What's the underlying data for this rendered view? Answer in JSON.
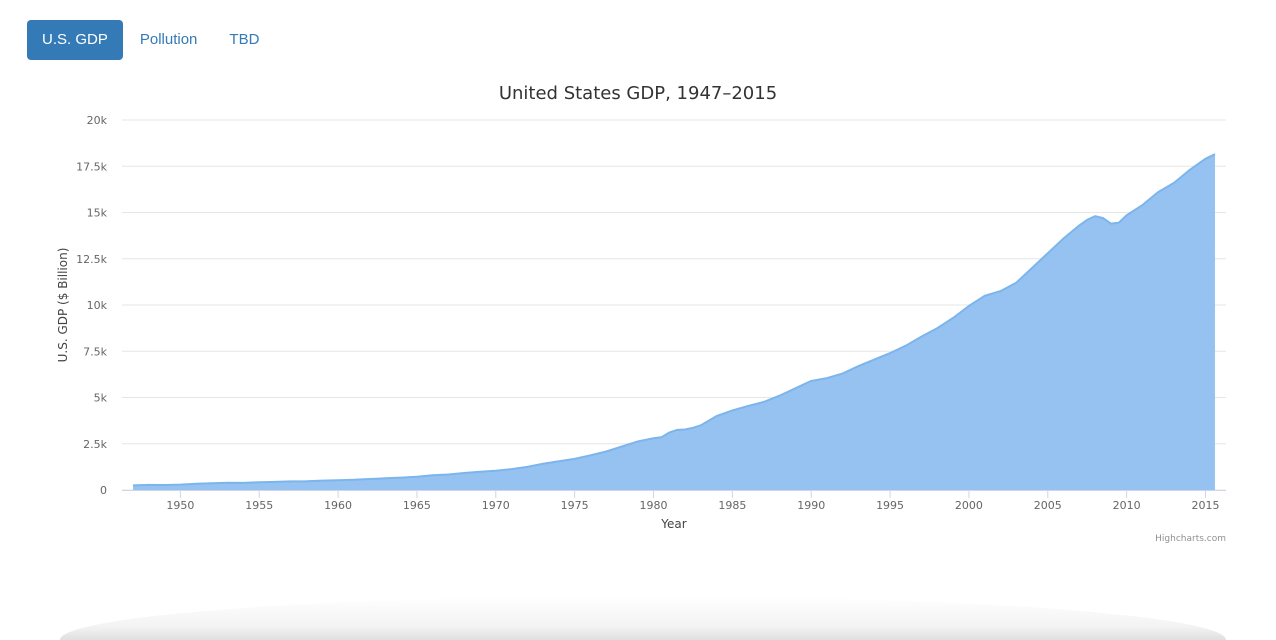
{
  "tabs": [
    {
      "label": "U.S. GDP",
      "active": true
    },
    {
      "label": "Pollution",
      "active": false
    },
    {
      "label": "TBD",
      "active": false
    }
  ],
  "colors": {
    "accent": "#337ab7",
    "series_fill": "#90bff1",
    "series_line": "#7cb5ec",
    "grid": "#e6e6e6"
  },
  "chart_data": {
    "type": "area",
    "title": "United States GDP, 1947–2015",
    "xlabel": "Year",
    "ylabel": "U.S. GDP ($ Billion)",
    "xlim": [
      1946.3,
      1935.6
    ],
    "xlim_note": "",
    "x_ticks": [
      "1950",
      "1955",
      "1960",
      "1965",
      "1970",
      "1975",
      "1980",
      "1985",
      "1990",
      "1995",
      "2000",
      "2005",
      "2010",
      "2015"
    ],
    "y_ticks": [
      "0",
      "2.5k",
      "5k",
      "7.5k",
      "10k",
      "12.5k",
      "15k",
      "17.5k",
      "20k"
    ],
    "ylim": [
      0,
      20000
    ],
    "grid": true,
    "legend": "none",
    "credits": "Highcharts.com",
    "series": [
      {
        "x": [
          1947,
          1948,
          1949,
          1950,
          1951,
          1952,
          1953,
          1954,
          1955,
          1956,
          1957,
          1958,
          1959,
          1960,
          1961,
          1962,
          1963,
          1964,
          1965,
          1966,
          1967,
          1968,
          1969,
          1970,
          1971,
          1972,
          1973,
          1974,
          1975,
          1976,
          1977,
          1978,
          1979,
          1980,
          1980.5,
          1981,
          1981.5,
          1982,
          1982.5,
          1983,
          1984,
          1985,
          1986,
          1987,
          1988,
          1989,
          1990,
          1991,
          1992,
          1993,
          1994,
          1995,
          1996,
          1997,
          1998,
          1999,
          2000,
          2001,
          2002,
          2003,
          2004,
          2005,
          2006,
          2007,
          2007.5,
          2008,
          2008.5,
          2009,
          2009.5,
          2010,
          2011,
          2012,
          2013,
          2014,
          2015,
          2015.6
        ],
        "values": [
          250,
          275,
          270,
          290,
          340,
          360,
          390,
          385,
          420,
          440,
          465,
          470,
          510,
          530,
          550,
          595,
          630,
          670,
          720,
          800,
          840,
          920,
          990,
          1040,
          1130,
          1250,
          1420,
          1550,
          1680,
          1870,
          2080,
          2350,
          2620,
          2800,
          2850,
          3100,
          3250,
          3270,
          3360,
          3500,
          4000,
          4300,
          4540,
          4760,
          5100,
          5500,
          5900,
          6050,
          6300,
          6700,
          7050,
          7400,
          7800,
          8300,
          8750,
          9300,
          9950,
          10500,
          10750,
          11200,
          12000,
          12800,
          13600,
          14300,
          14600,
          14800,
          14700,
          14400,
          14450,
          14850,
          15400,
          16100,
          16600,
          17300,
          17900,
          18150
        ]
      }
    ]
  }
}
